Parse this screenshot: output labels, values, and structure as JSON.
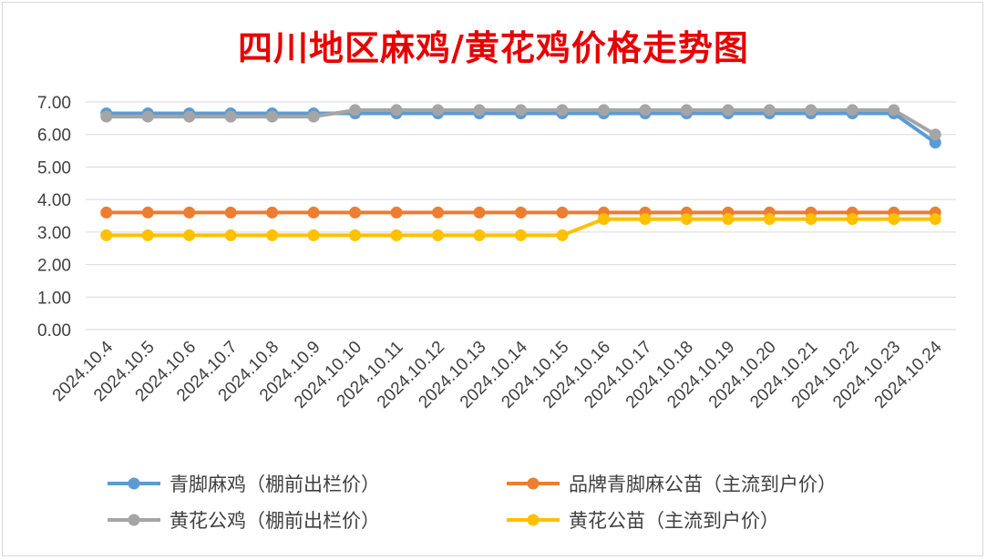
{
  "chart_data": {
    "type": "line",
    "title": "四川地区麻鸡/黄花鸡价格走势图",
    "xlabel": "",
    "ylabel": "",
    "categories": [
      "2024.10.4",
      "2024.10.5",
      "2024.10.6",
      "2024.10.7",
      "2024.10.8",
      "2024.10.9",
      "2024.10.10",
      "2024.10.11",
      "2024.10.12",
      "2024.10.13",
      "2024.10.14",
      "2024.10.15",
      "2024.10.16",
      "2024.10.17",
      "2024.10.18",
      "2024.10.19",
      "2024.10.20",
      "2024.10.21",
      "2024.10.22",
      "2024.10.23",
      "2024.10.24"
    ],
    "yticks": [
      "0.00",
      "1.00",
      "2.00",
      "3.00",
      "4.00",
      "5.00",
      "6.00",
      "7.00"
    ],
    "ylim": [
      0,
      7
    ],
    "grid": true,
    "legend_position": "bottom",
    "series": [
      {
        "name": "青脚麻鸡（棚前出栏价）",
        "color": "#5b9bd5",
        "values": [
          6.65,
          6.65,
          6.65,
          6.65,
          6.65,
          6.65,
          6.65,
          6.65,
          6.65,
          6.65,
          6.65,
          6.65,
          6.65,
          6.65,
          6.65,
          6.65,
          6.65,
          6.65,
          6.65,
          6.65,
          5.75
        ]
      },
      {
        "name": "品牌青脚麻公苗（主流到户价）",
        "color": "#ed7d31",
        "values": [
          3.6,
          3.6,
          3.6,
          3.6,
          3.6,
          3.6,
          3.6,
          3.6,
          3.6,
          3.6,
          3.6,
          3.6,
          3.6,
          3.6,
          3.6,
          3.6,
          3.6,
          3.6,
          3.6,
          3.6,
          3.6
        ]
      },
      {
        "name": "黄花公鸡（棚前出栏价）",
        "color": "#a5a5a5",
        "values": [
          6.55,
          6.55,
          6.55,
          6.55,
          6.55,
          6.55,
          6.75,
          6.75,
          6.75,
          6.75,
          6.75,
          6.75,
          6.75,
          6.75,
          6.75,
          6.75,
          6.75,
          6.75,
          6.75,
          6.75,
          6.0
        ]
      },
      {
        "name": "黄花公苗（主流到户价）",
        "color": "#ffc000",
        "values": [
          2.9,
          2.9,
          2.9,
          2.9,
          2.9,
          2.9,
          2.9,
          2.9,
          2.9,
          2.9,
          2.9,
          2.9,
          3.4,
          3.4,
          3.4,
          3.4,
          3.4,
          3.4,
          3.4,
          3.4,
          3.4
        ]
      }
    ]
  }
}
